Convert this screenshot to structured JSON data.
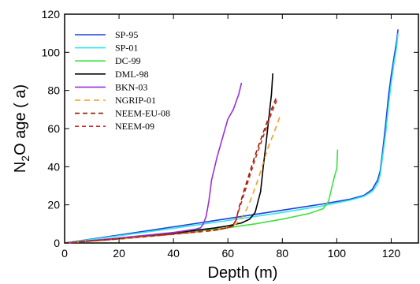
{
  "chart_data": {
    "type": "line",
    "xlabel": "Depth (m)",
    "ylabel_parts": {
      "base": "N",
      "sub": "2",
      "rest": "O age ( a)"
    },
    "xlim": [
      0,
      130
    ],
    "ylim": [
      0,
      120
    ],
    "xticks": [
      0,
      20,
      40,
      60,
      80,
      100,
      120
    ],
    "yticks": [
      0,
      20,
      40,
      60,
      80,
      100,
      120
    ],
    "grid": false,
    "legend_position": "top-left",
    "series": [
      {
        "name": "SP-95",
        "color": "#1f3fd6",
        "dash": "solid",
        "x": [
          0,
          20,
          40,
          60,
          80,
          95,
          105,
          110,
          113,
          115,
          116,
          117,
          118,
          119,
          120,
          121,
          122,
          122.5
        ],
        "y": [
          0,
          4.2,
          8.5,
          12.8,
          17.2,
          20.5,
          23,
          25,
          28,
          33,
          38,
          50,
          63,
          77,
          88,
          97,
          106,
          112
        ]
      },
      {
        "name": "SP-01",
        "color": "#2ee6e6",
        "dash": "solid",
        "x": [
          0,
          20,
          40,
          60,
          80,
          95,
          105,
          110,
          113,
          115,
          116,
          117,
          118,
          119,
          120,
          121,
          122,
          122.5
        ],
        "y": [
          0,
          3.8,
          7.7,
          11.8,
          16,
          19.5,
          22.5,
          24.5,
          27,
          31,
          36,
          47,
          58,
          72,
          84,
          94,
          103,
          110
        ]
      },
      {
        "name": "DC-99",
        "color": "#3fe03f",
        "dash": "solid",
        "x": [
          0,
          20,
          40,
          60,
          70,
          80,
          90,
          95,
          97,
          98,
          99,
          100,
          100.3
        ],
        "y": [
          0,
          2.2,
          4.8,
          8,
          10,
          12.5,
          15.5,
          18,
          22,
          28,
          34,
          39,
          49
        ]
      },
      {
        "name": "DML-98",
        "color": "#000000",
        "dash": "solid",
        "x": [
          0,
          20,
          40,
          55,
          60,
          65,
          68,
          70,
          72,
          73,
          74,
          75,
          76,
          76.5
        ],
        "y": [
          0,
          2.5,
          5.3,
          7.8,
          9,
          10.5,
          12.5,
          16,
          27,
          40,
          52,
          65,
          78,
          89
        ]
      },
      {
        "name": "BKN-03",
        "color": "#9b30d9",
        "dash": "solid",
        "x": [
          0,
          20,
          40,
          48,
          50,
          51,
          52,
          53,
          54,
          56,
          58,
          60,
          62,
          64,
          65
        ],
        "y": [
          0,
          2.6,
          5.5,
          7.2,
          8,
          10,
          14,
          22,
          33,
          45,
          55,
          65,
          70,
          78,
          84
        ]
      },
      {
        "name": "NGRIP-01",
        "color": "#f0a020",
        "dash": "7,5",
        "x": [
          0,
          20,
          40,
          55,
          60,
          63,
          65,
          67,
          69,
          71,
          73,
          75,
          77,
          79
        ],
        "y": [
          0,
          2,
          4.5,
          6.5,
          8,
          10,
          13,
          18,
          25,
          33,
          42,
          51,
          58,
          66
        ]
      },
      {
        "name": "NEEM-EU-08",
        "color": "#8b2500",
        "dash": "6,4",
        "x": [
          0,
          20,
          40,
          55,
          60,
          62,
          63,
          64,
          66,
          68,
          70,
          72,
          74,
          76,
          78
        ],
        "y": [
          0,
          2.2,
          4.8,
          6.8,
          8,
          9,
          12,
          18,
          28,
          37,
          46,
          54,
          62,
          70,
          77
        ]
      },
      {
        "name": "NEEM-09",
        "color": "#d02020",
        "dash": "5,4",
        "x": [
          0,
          20,
          40,
          55,
          60,
          62,
          63,
          64,
          66,
          68,
          70,
          72,
          74,
          76,
          78
        ],
        "y": [
          0,
          2.1,
          4.6,
          6.6,
          8,
          9.5,
          12.5,
          17,
          26,
          35,
          44,
          52,
          60,
          68,
          75
        ]
      }
    ]
  }
}
